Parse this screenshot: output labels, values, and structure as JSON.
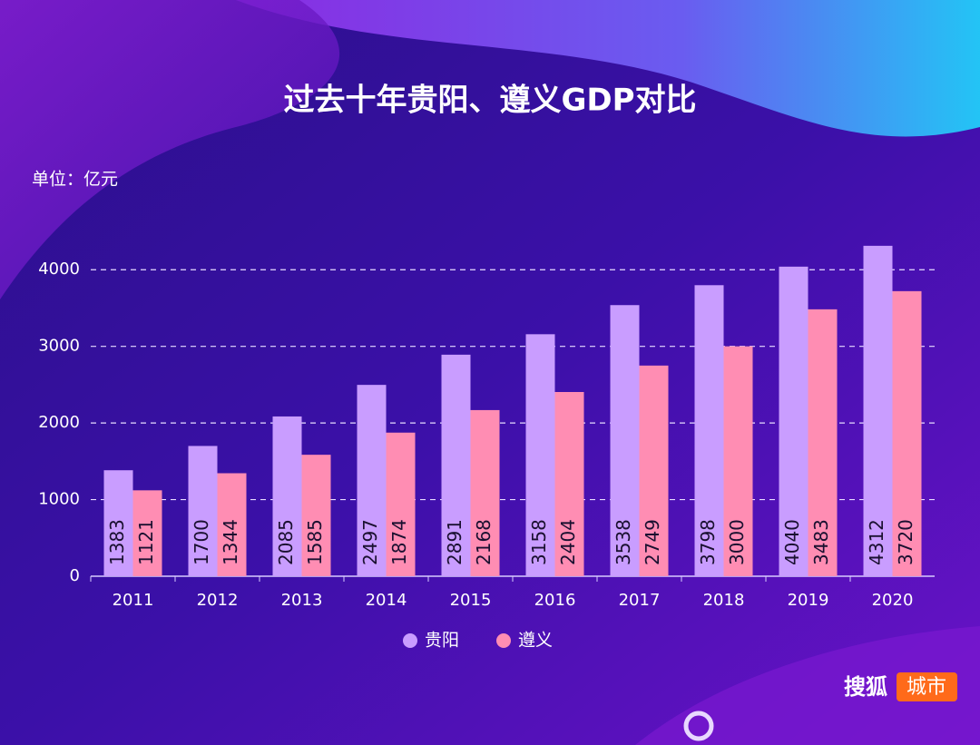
{
  "chart_data": {
    "type": "bar",
    "title": "过去十年贵阳、遵义GDP对比",
    "unit_label": "单位：亿元",
    "categories": [
      "2011",
      "2012",
      "2013",
      "2014",
      "2015",
      "2016",
      "2017",
      "2018",
      "2019",
      "2020"
    ],
    "series": [
      {
        "name": "贵阳",
        "color": "#c99dff",
        "values": [
          1383,
          1700,
          2085,
          2497,
          2891,
          3158,
          3538,
          3798,
          4040,
          4312
        ]
      },
      {
        "name": "遵义",
        "color": "#ff8db3",
        "values": [
          1121,
          1344,
          1585,
          1874,
          2168,
          2404,
          2749,
          3000,
          3483,
          3720
        ]
      }
    ],
    "ylim": [
      0,
      4500
    ],
    "yticks": [
      0,
      1000,
      2000,
      3000,
      4000
    ],
    "grid": true,
    "legend": "bottom",
    "brand": {
      "name": "搜狐",
      "badge": "城市"
    }
  }
}
